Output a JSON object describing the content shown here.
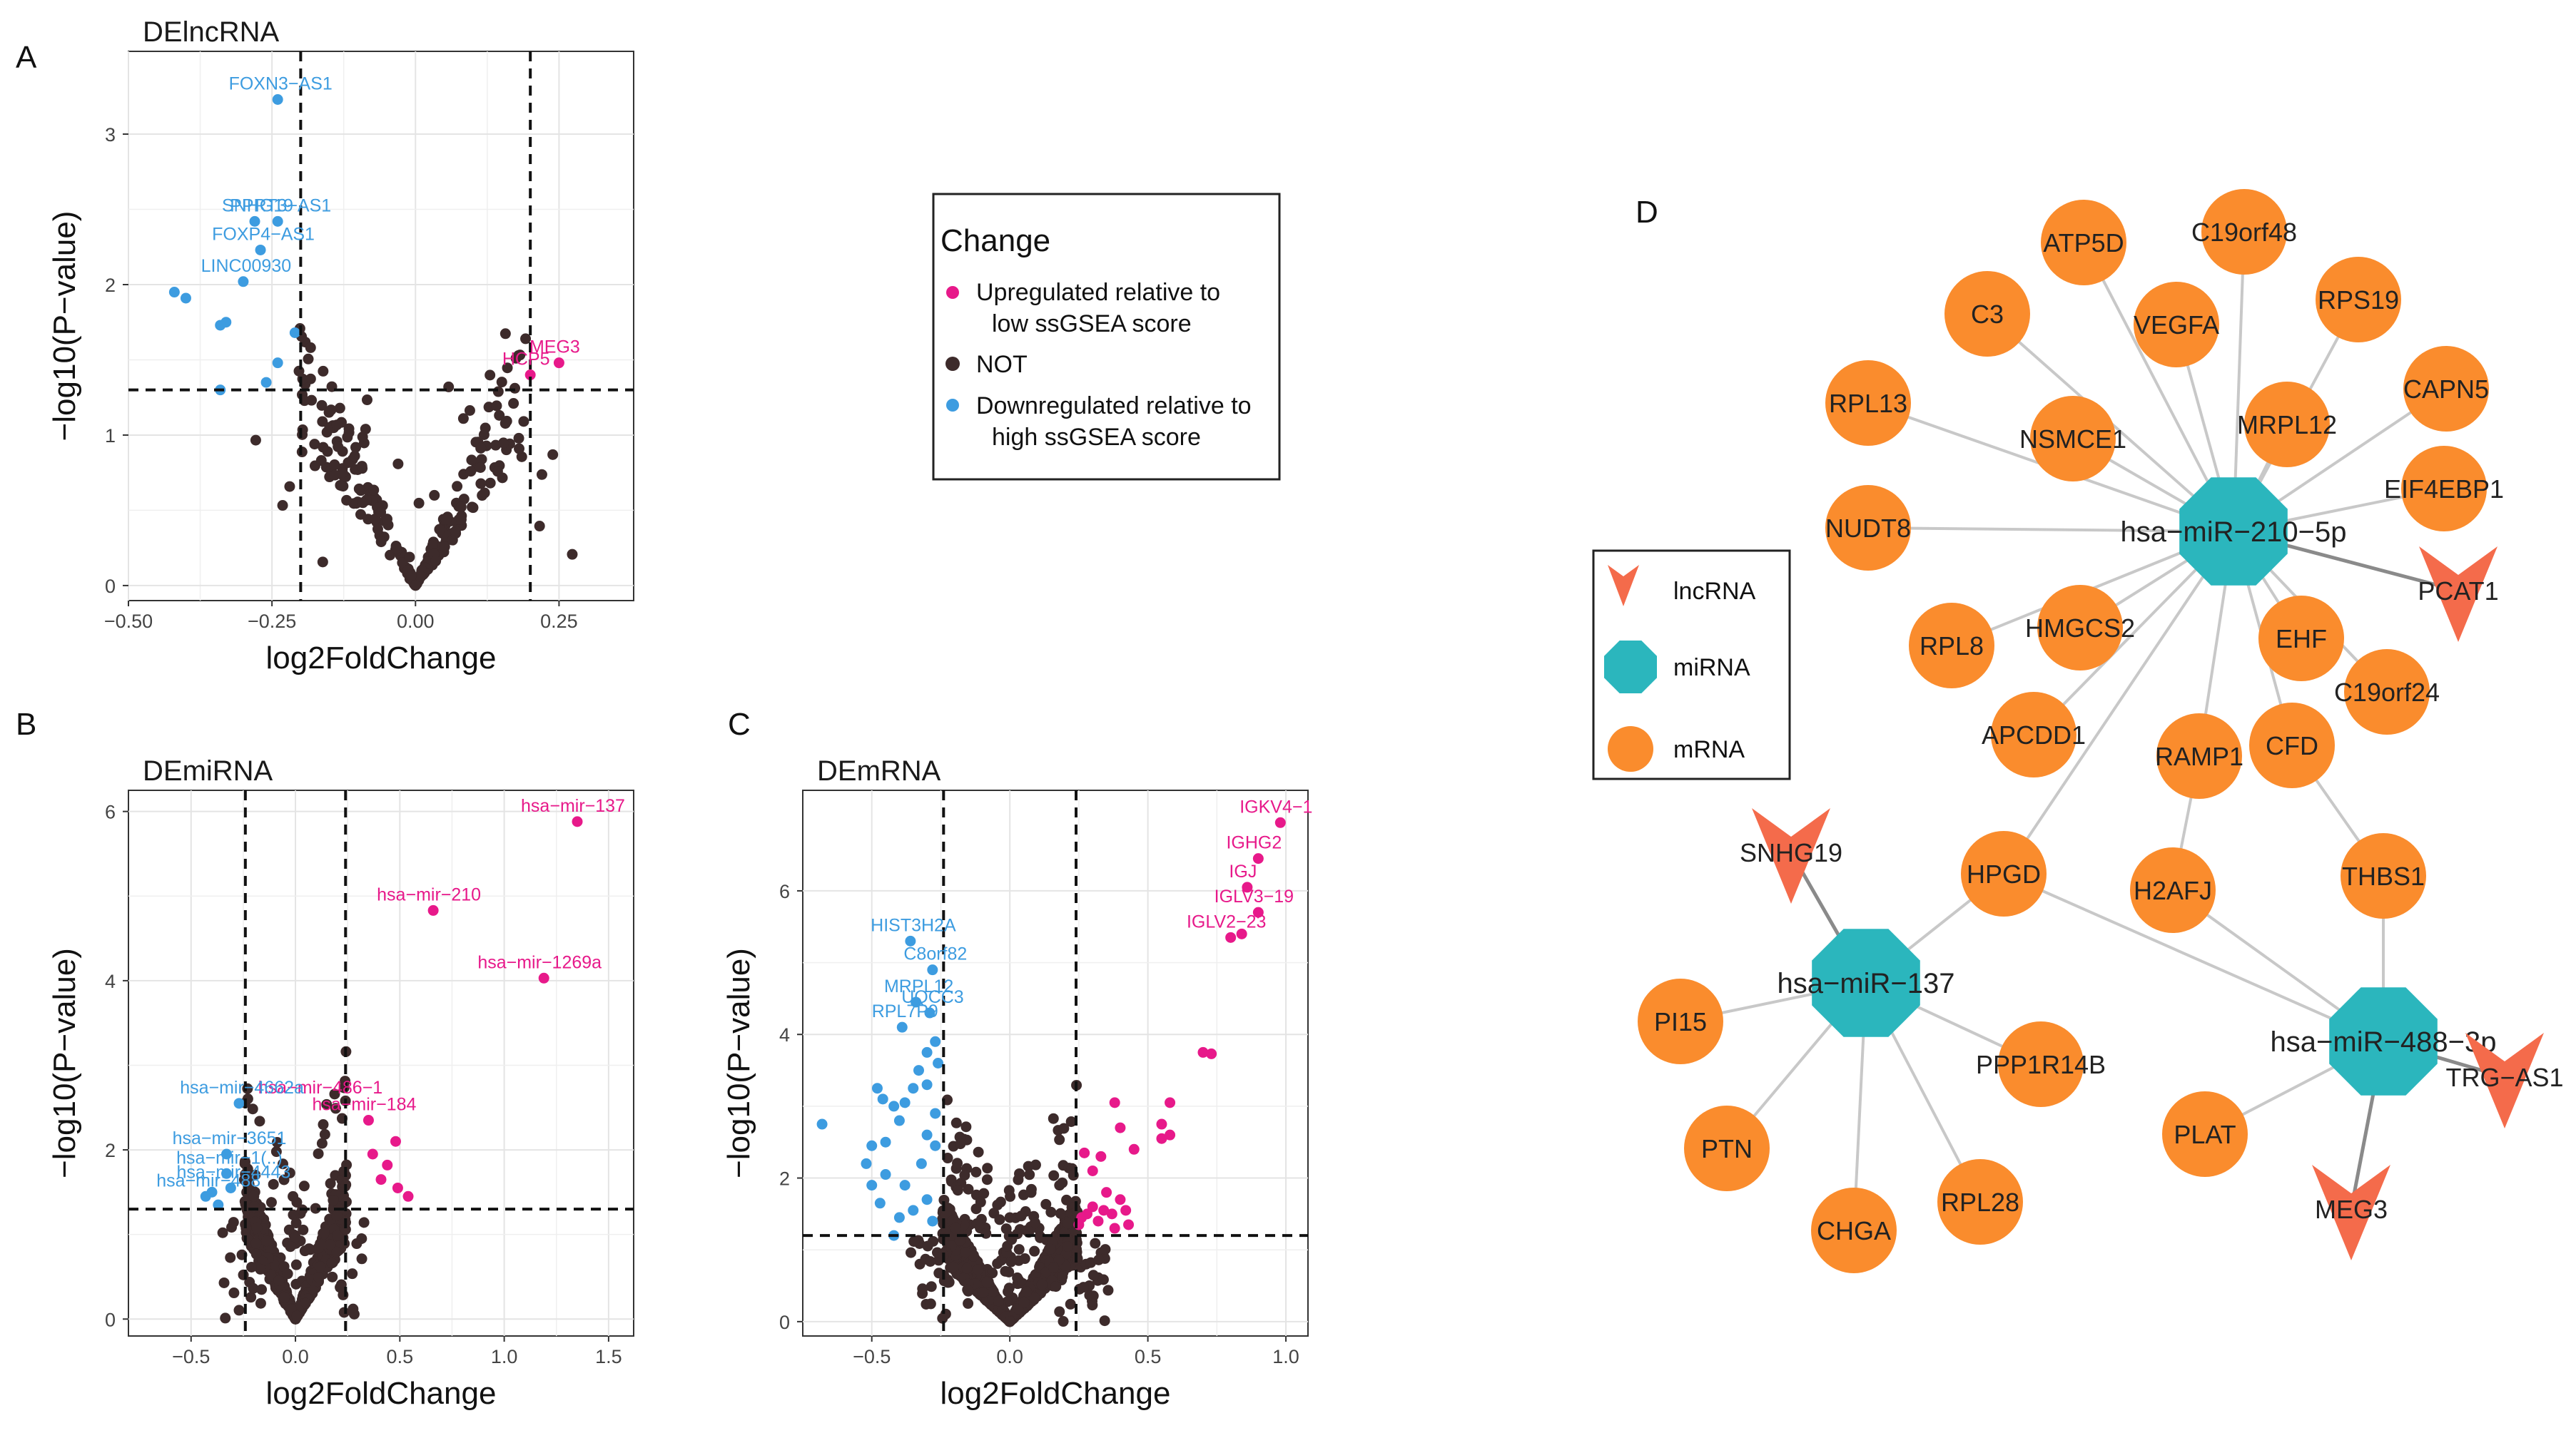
{
  "colors": {
    "up": "#e7198a",
    "down": "#3d9ce0",
    "not": "#3d2b2b",
    "mrna": "#fa8c2d",
    "mirna": "#2bb6bd",
    "lncrna": "#f46b4b",
    "edge": "#c8c8c8",
    "edge_dark": "#8a8a8a"
  },
  "panels": {
    "a": "A",
    "b": "B",
    "c": "C",
    "d": "D"
  },
  "legend": {
    "title": "Change",
    "up_line1": "Upregulated relative to",
    "up_line2": "low ssGSEA score",
    "not": "NOT",
    "down_line1": "Downregulated relative to",
    "down_line2": "high ssGSEA score"
  },
  "net_legend": {
    "lncrna": "lncRNA",
    "mirna": "miRNA",
    "mrna": "mRNA"
  },
  "chart_data": [
    {
      "id": "A",
      "type": "scatter",
      "title": "DElncRNA",
      "xlabel": "log2FoldChange",
      "ylabel": "−log10(P−value)",
      "xlim": [
        -0.5,
        0.38
      ],
      "ylim": [
        -0.1,
        3.55
      ],
      "xticks": [
        -0.5,
        -0.25,
        0,
        0.25
      ],
      "xtick_labels": [
        "−0.50",
        "−0.25",
        "0.00",
        "0.25"
      ],
      "yticks": [
        0,
        1,
        2,
        3
      ],
      "ytick_labels": [
        "0",
        "1",
        "2",
        "3"
      ],
      "vlines": [
        -0.2,
        0.2
      ],
      "hline": 1.3,
      "up_points": [
        [
          0.25,
          1.48
        ],
        [
          0.2,
          1.4
        ]
      ],
      "down_points": [
        [
          -0.24,
          3.23
        ],
        [
          -0.28,
          2.42
        ],
        [
          -0.24,
          2.42
        ],
        [
          -0.27,
          2.23
        ],
        [
          -0.3,
          2.02
        ],
        [
          -0.42,
          1.95
        ],
        [
          -0.4,
          1.91
        ],
        [
          -0.33,
          1.75
        ],
        [
          -0.34,
          1.73
        ],
        [
          -0.21,
          1.68
        ],
        [
          -0.24,
          1.48
        ],
        [
          -0.26,
          1.35
        ],
        [
          -0.34,
          1.3
        ]
      ],
      "up_labels": [
        {
          "text": "MEG3",
          "x": 0.25,
          "y": 1.48
        },
        {
          "text": "HCP5",
          "x": 0.2,
          "y": 1.4
        }
      ],
      "down_labels": [
        {
          "text": "FOXN3−AS1",
          "x": -0.24,
          "y": 3.23
        },
        {
          "text": "SNHG19",
          "x": -0.28,
          "y": 2.42
        },
        {
          "text": "PPRT3−AS1",
          "x": -0.24,
          "y": 2.42
        },
        {
          "text": "FOXP4−AS1",
          "x": -0.27,
          "y": 2.23
        },
        {
          "text": "LINC00930",
          "x": -0.3,
          "y": 2.02
        }
      ]
    },
    {
      "id": "B",
      "type": "scatter",
      "title": "DEmiRNA",
      "xlabel": "log2FoldChange",
      "ylabel": "−log10(P−value)",
      "xlim": [
        -0.8,
        1.62
      ],
      "ylim": [
        -0.2,
        6.25
      ],
      "xticks": [
        -0.5,
        0,
        0.5,
        1,
        1.5
      ],
      "xtick_labels": [
        "−0.5",
        "0.0",
        "0.5",
        "1.0",
        "1.5"
      ],
      "yticks": [
        0,
        2,
        4,
        6
      ],
      "ytick_labels": [
        "0",
        "2",
        "4",
        "6"
      ],
      "vlines": [
        -0.24,
        0.24
      ],
      "hline": 1.3,
      "up_points": [
        [
          1.35,
          5.88
        ],
        [
          0.66,
          4.83
        ],
        [
          1.19,
          4.03
        ],
        [
          0.35,
          2.35
        ],
        [
          0.48,
          2.1
        ],
        [
          0.37,
          1.95
        ],
        [
          0.44,
          1.82
        ],
        [
          0.41,
          1.65
        ],
        [
          0.49,
          1.55
        ],
        [
          0.54,
          1.45
        ]
      ],
      "down_points": [
        [
          -0.27,
          2.55
        ],
        [
          -0.33,
          1.95
        ],
        [
          -0.33,
          1.72
        ],
        [
          -0.31,
          1.55
        ],
        [
          -0.43,
          1.45
        ],
        [
          -0.37,
          1.35
        ],
        [
          -0.4,
          1.5
        ]
      ],
      "up_labels": [
        {
          "text": "hsa−mir−137",
          "x": 1.35,
          "y": 5.88
        },
        {
          "text": "hsa−mir−210",
          "x": 0.66,
          "y": 4.83
        },
        {
          "text": "hsa−mir−1269a",
          "x": 1.19,
          "y": 4.03
        },
        {
          "text": "hsa−mir−486−1",
          "x": 0.14,
          "y": 2.55
        },
        {
          "text": "hsa−mir−184",
          "x": 0.35,
          "y": 2.35
        }
      ],
      "down_labels": [
        {
          "text": "hsa−mir−4662a",
          "x": -0.27,
          "y": 2.55
        },
        {
          "text": "hsa−mir−3651",
          "x": -0.33,
          "y": 1.95
        },
        {
          "text": "hsa−mir−1(..)",
          "x": -0.33,
          "y": 1.72
        },
        {
          "text": "hsa−mir−4443",
          "x": -0.31,
          "y": 1.55
        },
        {
          "text": "hsa−mir−488",
          "x": -0.43,
          "y": 1.45
        }
      ]
    },
    {
      "id": "C",
      "type": "scatter",
      "title": "DEmRNA",
      "xlabel": "log2FoldChange",
      "ylabel": "−log10(P−value)",
      "xlim": [
        -0.75,
        1.08
      ],
      "ylim": [
        -0.2,
        7.4
      ],
      "xticks": [
        -0.5,
        0,
        0.5,
        1
      ],
      "xtick_labels": [
        "−0.5",
        "0.0",
        "0.5",
        "1.0"
      ],
      "yticks": [
        0,
        2,
        4,
        6
      ],
      "ytick_labels": [
        "0",
        "2",
        "4",
        "6"
      ],
      "vlines": [
        -0.24,
        0.24
      ],
      "hline": 1.2,
      "up_points": [
        [
          0.98,
          6.95
        ],
        [
          0.9,
          6.45
        ],
        [
          0.86,
          6.05
        ],
        [
          0.9,
          5.7
        ],
        [
          0.8,
          5.35
        ],
        [
          0.84,
          5.4
        ],
        [
          0.7,
          3.75
        ],
        [
          0.73,
          3.73
        ],
        [
          0.58,
          3.05
        ],
        [
          0.55,
          2.75
        ],
        [
          0.58,
          2.6
        ],
        [
          0.55,
          2.55
        ],
        [
          0.38,
          3.05
        ],
        [
          0.4,
          2.7
        ],
        [
          0.45,
          2.4
        ],
        [
          0.33,
          2.3
        ],
        [
          0.27,
          2.35
        ],
        [
          0.3,
          2.1
        ],
        [
          0.35,
          1.8
        ],
        [
          0.4,
          1.7
        ],
        [
          0.3,
          1.6
        ],
        [
          0.28,
          1.5
        ],
        [
          0.32,
          1.4
        ],
        [
          0.26,
          1.45
        ],
        [
          0.42,
          1.55
        ],
        [
          0.38,
          1.3
        ],
        [
          0.25,
          1.35
        ],
        [
          0.37,
          1.5
        ],
        [
          0.34,
          1.55
        ],
        [
          0.43,
          1.35
        ]
      ],
      "down_points": [
        [
          -0.36,
          5.3
        ],
        [
          -0.28,
          4.9
        ],
        [
          -0.34,
          4.45
        ],
        [
          -0.29,
          4.3
        ],
        [
          -0.39,
          4.1
        ],
        [
          -0.68,
          2.75
        ],
        [
          -0.48,
          3.25
        ],
        [
          -0.46,
          3.1
        ],
        [
          -0.42,
          3.0
        ],
        [
          -0.38,
          3.05
        ],
        [
          -0.3,
          3.3
        ],
        [
          -0.26,
          3.6
        ],
        [
          -0.27,
          3.9
        ],
        [
          -0.3,
          3.75
        ],
        [
          -0.33,
          3.5
        ],
        [
          -0.35,
          3.25
        ],
        [
          -0.4,
          2.8
        ],
        [
          -0.45,
          2.5
        ],
        [
          -0.5,
          2.45
        ],
        [
          -0.52,
          2.2
        ],
        [
          -0.45,
          2.05
        ],
        [
          -0.38,
          1.9
        ],
        [
          -0.32,
          2.2
        ],
        [
          -0.27,
          2.45
        ],
        [
          -0.3,
          1.7
        ],
        [
          -0.35,
          1.55
        ],
        [
          -0.4,
          1.45
        ],
        [
          -0.47,
          1.65
        ],
        [
          -0.5,
          1.9
        ],
        [
          -0.42,
          1.2
        ],
        [
          -0.28,
          1.4
        ],
        [
          -0.3,
          2.6
        ],
        [
          -0.27,
          2.9
        ]
      ],
      "up_labels": [
        {
          "text": "IGKV4−1",
          "x": 0.98,
          "y": 6.95
        },
        {
          "text": "IGHG2",
          "x": 0.9,
          "y": 6.45
        },
        {
          "text": "IGJ",
          "x": 0.86,
          "y": 6.05
        },
        {
          "text": "IGLV3−19",
          "x": 0.9,
          "y": 5.7
        },
        {
          "text": "IGLV2−23",
          "x": 0.8,
          "y": 5.35
        }
      ],
      "down_labels": [
        {
          "text": "HIST3H2A",
          "x": -0.36,
          "y": 5.3
        },
        {
          "text": "C8orf82",
          "x": -0.28,
          "y": 4.9
        },
        {
          "text": "MRPL12",
          "x": -0.34,
          "y": 4.45
        },
        {
          "text": "UQCC3",
          "x": -0.29,
          "y": 4.3
        },
        {
          "text": "RPL7P9",
          "x": -0.39,
          "y": 4.1
        }
      ]
    },
    {
      "id": "D",
      "type": "network",
      "mirna": [
        "hsa−miR−210−5p",
        "hsa−miR−137",
        "hsa−miR−488−3p"
      ],
      "lncrna": [
        "PCAT1",
        "SNHG19",
        "TRG−AS1",
        "MEG3"
      ],
      "mrna": [
        "ATP5D",
        "C19orf48",
        "C3",
        "VEGFA",
        "RPS19",
        "RPL13",
        "NSMCE1",
        "MRPL12",
        "CAPN5",
        "EIF4EBP1",
        "NUDT8",
        "RPL8",
        "HMGCS2",
        "EHF",
        "C19orf24",
        "APCDD1",
        "RAMP1",
        "CFD",
        "HPGD",
        "H2AFJ",
        "THBS1",
        "PI15",
        "PPP1R14B",
        "PTN",
        "RPL28",
        "CHGA",
        "PLAT"
      ],
      "edges": [
        [
          "hsa−miR−210−5p",
          "ATP5D"
        ],
        [
          "hsa−miR−210−5p",
          "C19orf48"
        ],
        [
          "hsa−miR−210−5p",
          "C3"
        ],
        [
          "hsa−miR−210−5p",
          "VEGFA"
        ],
        [
          "hsa−miR−210−5p",
          "RPS19"
        ],
        [
          "hsa−miR−210−5p",
          "RPL13"
        ],
        [
          "hsa−miR−210−5p",
          "NSMCE1"
        ],
        [
          "hsa−miR−210−5p",
          "MRPL12"
        ],
        [
          "hsa−miR−210−5p",
          "CAPN5"
        ],
        [
          "hsa−miR−210−5p",
          "EIF4EBP1"
        ],
        [
          "hsa−miR−210−5p",
          "NUDT8"
        ],
        [
          "hsa−miR−210−5p",
          "RPL8"
        ],
        [
          "hsa−miR−210−5p",
          "HMGCS2"
        ],
        [
          "hsa−miR−210−5p",
          "EHF"
        ],
        [
          "hsa−miR−210−5p",
          "C19orf24"
        ],
        [
          "hsa−miR−210−5p",
          "APCDD1"
        ],
        [
          "hsa−miR−210−5p",
          "RAMP1"
        ],
        [
          "hsa−miR−210−5p",
          "CFD"
        ],
        [
          "hsa−miR−210−5p",
          "HPGD"
        ],
        [
          "hsa−miR−210−5p",
          "PCAT1"
        ],
        [
          "hsa−miR−137",
          "HPGD"
        ],
        [
          "hsa−miR−137",
          "PI15"
        ],
        [
          "hsa−miR−137",
          "PPP1R14B"
        ],
        [
          "hsa−miR−137",
          "PTN"
        ],
        [
          "hsa−miR−137",
          "CHGA"
        ],
        [
          "hsa−miR−137",
          "RPL28"
        ],
        [
          "hsa−miR−137",
          "SNHG19"
        ],
        [
          "hsa−miR−488−3p",
          "HPGD"
        ],
        [
          "hsa−miR−488−3p",
          "H2AFJ"
        ],
        [
          "hsa−miR−488−3p",
          "THBS1"
        ],
        [
          "hsa−miR−488−3p",
          "PLAT"
        ],
        [
          "hsa−miR−488−3p",
          "TRG−AS1"
        ],
        [
          "hsa−miR−488−3p",
          "MEG3"
        ],
        [
          "CFD",
          "THBS1"
        ],
        [
          "RAMP1",
          "H2AFJ"
        ]
      ]
    }
  ]
}
